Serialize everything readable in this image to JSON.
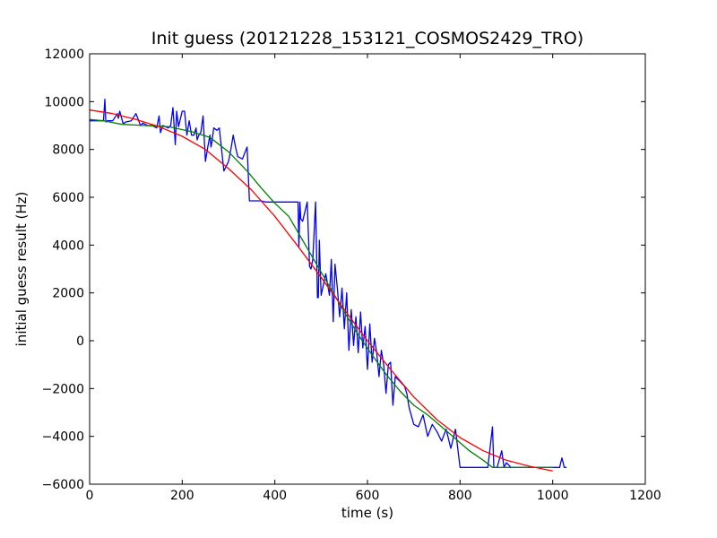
{
  "chart_data": {
    "type": "line",
    "title": "Init guess (20121228_153121_COSMOS2429_TRO)",
    "xlabel": "time (s)",
    "ylabel": "initial guess result (Hz)",
    "xlim": [
      0,
      1200
    ],
    "ylim": [
      -6000,
      12000
    ],
    "xticks": [
      0,
      200,
      400,
      600,
      800,
      1000,
      1200
    ],
    "yticks": [
      -6000,
      -4000,
      -2000,
      0,
      2000,
      4000,
      6000,
      8000,
      10000,
      12000
    ],
    "xtick_labels": [
      "0",
      "200",
      "400",
      "600",
      "800",
      "1000",
      "1200"
    ],
    "ytick_labels": [
      "−6000",
      "−4000",
      "−2000",
      "0",
      "2000",
      "4000",
      "6000",
      "8000",
      "10000",
      "12000"
    ],
    "grid": false,
    "legend": "none",
    "series": [
      {
        "color": "#0000ff",
        "x": [
          0,
          30,
          33,
          35,
          38,
          50,
          60,
          62,
          65,
          72,
          75,
          78,
          90,
          100,
          110,
          115,
          125,
          135,
          145,
          150,
          153,
          158,
          170,
          175,
          180,
          185,
          188,
          192,
          200,
          205,
          210,
          215,
          220,
          225,
          230,
          232,
          236,
          240,
          245,
          250,
          255,
          260,
          262,
          264,
          268,
          275,
          280,
          290,
          300,
          305,
          310,
          315,
          320,
          330,
          340,
          345,
          347,
          350,
          370,
          380,
          390,
          400,
          420,
          440,
          450,
          452,
          454,
          456,
          460,
          470,
          475,
          478,
          482,
          488,
          492,
          494,
          496,
          500,
          510,
          518,
          522,
          526,
          530,
          535,
          540,
          545,
          550,
          555,
          560,
          565,
          570,
          575,
          580,
          585,
          590,
          595,
          600,
          605,
          610,
          615,
          620,
          625,
          630,
          635,
          640,
          645,
          650,
          655,
          660,
          665,
          670,
          675,
          680,
          685,
          690,
          700,
          710,
          720,
          730,
          740,
          750,
          760,
          770,
          780,
          790,
          800,
          810,
          820,
          830,
          840,
          850,
          860,
          870,
          873,
          876,
          880,
          890,
          895,
          900,
          910,
          920,
          930,
          950,
          980,
          1000,
          1015,
          1020,
          1025,
          1030
        ],
        "y": [
          9200,
          9200,
          10100,
          9150,
          9200,
          9200,
          9500,
          9300,
          9600,
          9100,
          9100,
          9150,
          9200,
          9500,
          9000,
          9100,
          9000,
          9000,
          8900,
          9400,
          8700,
          9000,
          8900,
          9000,
          9750,
          8200,
          9600,
          8950,
          9600,
          9600,
          8600,
          9200,
          8600,
          8600,
          8900,
          8400,
          8600,
          8700,
          9400,
          7500,
          8100,
          8600,
          8100,
          8300,
          8900,
          8800,
          8900,
          7100,
          7500,
          8000,
          8600,
          8100,
          7700,
          7600,
          8100,
          5850,
          5850,
          5850,
          5850,
          5800,
          5800,
          5800,
          5800,
          5800,
          5800,
          3900,
          5800,
          5100,
          5000,
          5800,
          3100,
          3000,
          3400,
          5800,
          1800,
          1800,
          4200,
          1900,
          2800,
          1900,
          3400,
          800,
          3200,
          2200,
          1000,
          2200,
          500,
          2000,
          -400,
          1300,
          -200,
          1000,
          -500,
          1200,
          -300,
          600,
          -1200,
          700,
          -900,
          100,
          -500,
          -1500,
          -400,
          -1000,
          -2200,
          -1000,
          -900,
          -2700,
          -1500,
          -1600,
          -1700,
          -1800,
          -1900,
          -2200,
          -2800,
          -3500,
          -3600,
          -3100,
          -4000,
          -3500,
          -3800,
          -4200,
          -3700,
          -4500,
          -3700,
          -5300,
          -5300,
          -5300,
          -5300,
          -5300,
          -5300,
          -5300,
          -3600,
          -5300,
          -5300,
          -5300,
          -4600,
          -5300,
          -5100,
          -5300,
          -5300,
          -5300,
          -5300,
          -5300,
          -5300,
          -5300,
          -4900,
          -5300,
          -5300
        ]
      },
      {
        "color": "#008000",
        "x": [
          0,
          30,
          70,
          120,
          170,
          220,
          260,
          300,
          340,
          370,
          400,
          430,
          460,
          490,
          520,
          550,
          580,
          610,
          640,
          670,
          700,
          730,
          760,
          790,
          820,
          850,
          870,
          900,
          950,
          1000
        ],
        "y": [
          9250,
          9200,
          9050,
          9000,
          8950,
          8750,
          8500,
          7900,
          7100,
          6400,
          5750,
          5200,
          4200,
          3200,
          2200,
          1200,
          250,
          -600,
          -1400,
          -2100,
          -2700,
          -3100,
          -3600,
          -4100,
          -4600,
          -5000,
          -5300,
          -5300,
          -5300,
          -5300
        ]
      },
      {
        "color": "#ff0000",
        "x": [
          0,
          50,
          100,
          150,
          200,
          250,
          300,
          350,
          400,
          450,
          500,
          550,
          600,
          650,
          700,
          750,
          800,
          850,
          900,
          950,
          1000
        ],
        "y": [
          9650,
          9500,
          9250,
          8950,
          8550,
          8000,
          7200,
          6300,
          5200,
          3950,
          2650,
          1300,
          0,
          -1200,
          -2350,
          -3300,
          -4050,
          -4600,
          -5000,
          -5250,
          -5450
        ]
      }
    ]
  }
}
